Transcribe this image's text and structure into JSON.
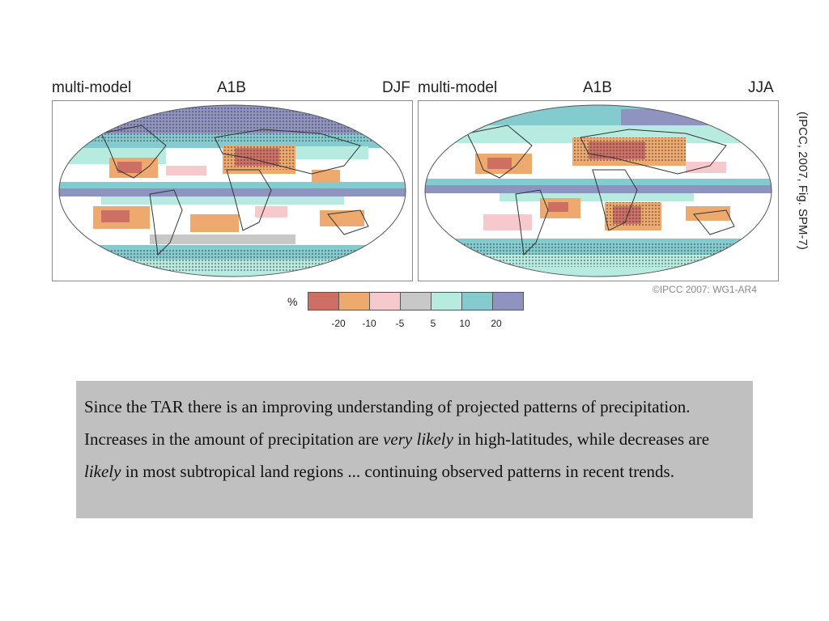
{
  "panels": [
    {
      "left_label": "multi-model",
      "center_label": "A1B",
      "right_label": "DJF"
    },
    {
      "left_label": "multi-model",
      "center_label": "A1B",
      "right_label": "JJA"
    }
  ],
  "citation": "(IPCC, 2007, Fig. SPM-7)",
  "copyright": "©IPCC 2007: WG1-AR4",
  "legend": {
    "unit": "%",
    "ticks": [
      "-20",
      "-10",
      "-5",
      "5",
      "10",
      "20"
    ],
    "colors": [
      "#cd6f63",
      "#eeaa6e",
      "#f6c9cc",
      "#c8c8c8",
      "#b8ebe0",
      "#84cbd0",
      "#8e93c0"
    ]
  },
  "summary": {
    "part1": "Since the TAR there is an improving understanding of projected patterns of precipitation. Increases in the amount of precipitation are ",
    "em1": "very likely",
    "part2": " in high-latitudes, while decreases are ",
    "em2": "likely",
    "part3": " in most subtropical land regions   ... continuing observed patterns in recent trends."
  }
}
